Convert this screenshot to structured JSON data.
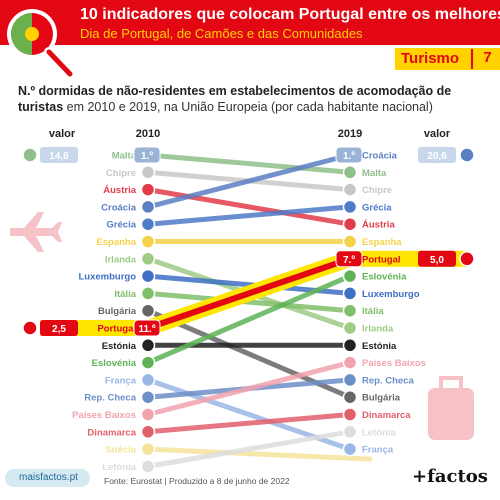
{
  "header": {
    "title": "10 indicadores que colocam Portugal entre os melhores",
    "subtitle": "Dia de Portugal, de Camões e das Comunidades"
  },
  "section": {
    "label": "Turismo",
    "number": "7"
  },
  "chart_title": {
    "bold": "N.º dormidas de não-residentes em estabelecimentos de acomodação de turistas",
    "rest": " em 2010 e 2019, na União Europeia (por cada habitante nacional)"
  },
  "chart_data": {
    "type": "slope",
    "x": [
      "2010",
      "2019"
    ],
    "value_label": "valor",
    "rank_2010": [
      "Malta",
      "Chipre",
      "Áustria",
      "Croácia",
      "Grécia",
      "Espanha",
      "Irlanda",
      "Luxemburgo",
      "Itália",
      "Bulgária",
      "Portugal",
      "Estónia",
      "Eslovénia",
      "França",
      "Rep. Checa",
      "Países Baixos",
      "Dinamarca",
      "Suécia",
      "Letónia"
    ],
    "rank_2019": [
      "Croácia",
      "Malta",
      "Chipre",
      "Grécia",
      "Áustria",
      "Espanha",
      "Portugal",
      "Eslovénia",
      "Luxemburgo",
      "Itália",
      "Irlanda",
      "Estónia",
      "Países Baixos",
      "Rep. Checa",
      "Bulgária",
      "Dinamarca",
      "Letónia",
      "França"
    ],
    "annotations": [
      {
        "country": "Malta",
        "year": "2010",
        "rank": "1.º",
        "value": "14,6"
      },
      {
        "country": "Portugal",
        "year": "2010",
        "rank": "11.º",
        "value": "2,5"
      },
      {
        "country": "Croácia",
        "year": "2019",
        "rank": "1.º",
        "value": "20,6"
      },
      {
        "country": "Portugal",
        "year": "2019",
        "rank": "7.º",
        "value": "5,0"
      }
    ],
    "highlight": "Portugal"
  },
  "colors": {
    "Malta": "#8fbf8a",
    "Chipre": "#c8c8c8",
    "Áustria": "#e23b4a",
    "Croácia": "#5b7fc3",
    "Grécia": "#4f7bc8",
    "Espanha": "#f4d24a",
    "Irlanda": "#9ecb86",
    "Luxemburgo": "#3e6fc4",
    "Itália": "#7fbf6a",
    "Bulgária": "#666666",
    "Portugal": "#e30613",
    "Estónia": "#222222",
    "Eslovénia": "#5fb356",
    "França": "#9ab7e6",
    "Rep. Checa": "#6c8fc8",
    "Países Baixos": "#f2a3ae",
    "Dinamarca": "#e25f6c",
    "Suécia": "#f6e39a",
    "Letónia": "#dddddd",
    "highlight_fill": "#ffe600",
    "rank_bubble": "#9ab3d6",
    "red": "#e30613",
    "yellow": "#ffd200"
  },
  "footer": {
    "site": "maisfactos.pt",
    "source": "Fonte: Eurostat | Produzido a 8 de junho de 2022",
    "brand": "+factos"
  }
}
